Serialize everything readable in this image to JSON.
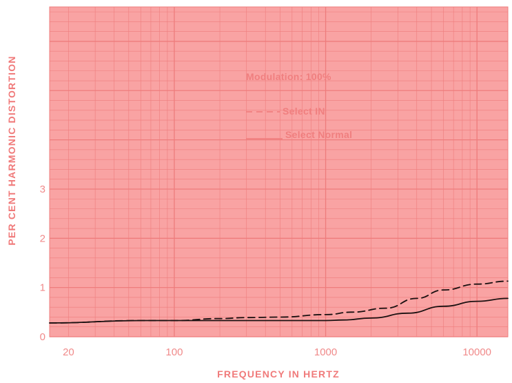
{
  "chart_data": {
    "type": "line",
    "title": "",
    "xlabel": "FREQUENCY  IN  HERTZ",
    "ylabel": "PER CENT HARMONIC DISTORTION",
    "x_scale": "log",
    "xlim": [
      15,
      16000
    ],
    "ylim": [
      0,
      6.7
    ],
    "x_ticks": [
      20,
      100,
      1000,
      10000
    ],
    "x_tick_labels": [
      "20",
      "100",
      "1000",
      "10000"
    ],
    "y_ticks": [
      0,
      1,
      2,
      3
    ],
    "y_tick_labels": [
      "0",
      "1",
      "2",
      "3"
    ],
    "grid": true,
    "annotation": "Modulation: 100%",
    "legend_placement": "center",
    "series": [
      {
        "name": "Select IN",
        "style": "dashed",
        "x": [
          15,
          60,
          100,
          200,
          300,
          500,
          1000,
          1500,
          2500,
          4000,
          6000,
          10000,
          16000
        ],
        "y": [
          0.28,
          0.33,
          0.33,
          0.37,
          0.39,
          0.4,
          0.45,
          0.5,
          0.58,
          0.78,
          0.95,
          1.07,
          1.13
        ]
      },
      {
        "name": "Select Normal",
        "style": "solid",
        "x": [
          15,
          60,
          100,
          200,
          500,
          1000,
          1300,
          2000,
          3500,
          6000,
          10000,
          16000
        ],
        "y": [
          0.28,
          0.33,
          0.33,
          0.33,
          0.33,
          0.33,
          0.34,
          0.38,
          0.48,
          0.62,
          0.72,
          0.78
        ]
      }
    ],
    "colors": {
      "background": "#f9a3a3",
      "grid": "#ee7c7c",
      "text": "#f08a8a",
      "line": "#1a1010"
    }
  }
}
